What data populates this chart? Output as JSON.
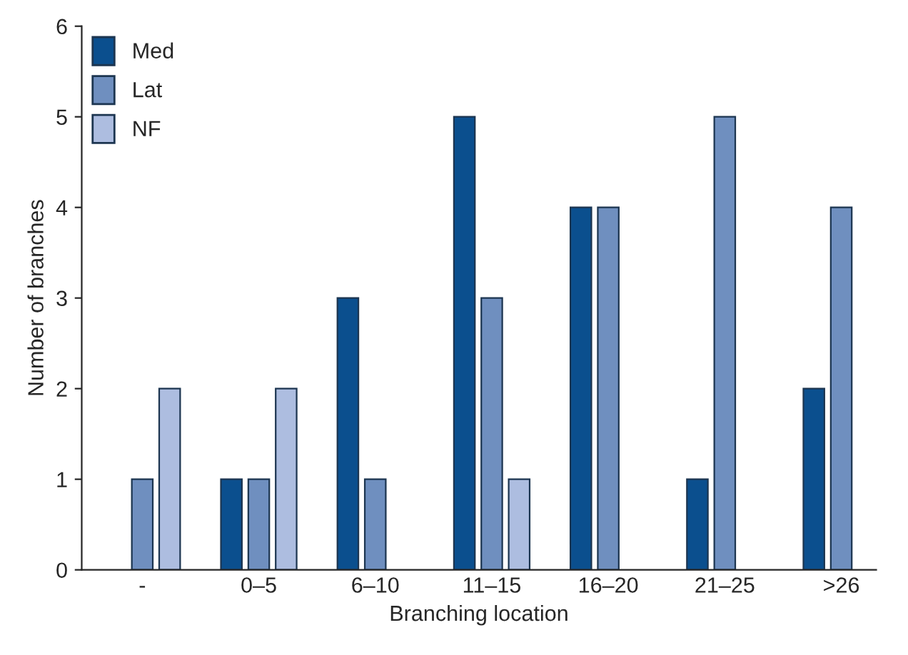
{
  "chart_data": {
    "type": "bar",
    "xlabel": "Branching location",
    "ylabel": "Number of branches",
    "categories": [
      "-",
      "0–5",
      "6–10",
      "11–15",
      "16–20",
      "21–25",
      ">26"
    ],
    "series": [
      {
        "name": "Med",
        "color": "#0b4f8e",
        "values": [
          null,
          1,
          3,
          5,
          4,
          1,
          2
        ]
      },
      {
        "name": "Lat",
        "color": "#6f8fbf",
        "values": [
          1,
          1,
          1,
          3,
          4,
          5,
          4
        ]
      },
      {
        "name": "NF",
        "color": "#adbde0",
        "values": [
          2,
          2,
          null,
          1,
          null,
          null,
          null
        ]
      }
    ],
    "ylim": [
      0,
      6
    ],
    "yticks": [
      0,
      1,
      2,
      3,
      4,
      5,
      6
    ],
    "grid": false,
    "legend": "top left"
  }
}
